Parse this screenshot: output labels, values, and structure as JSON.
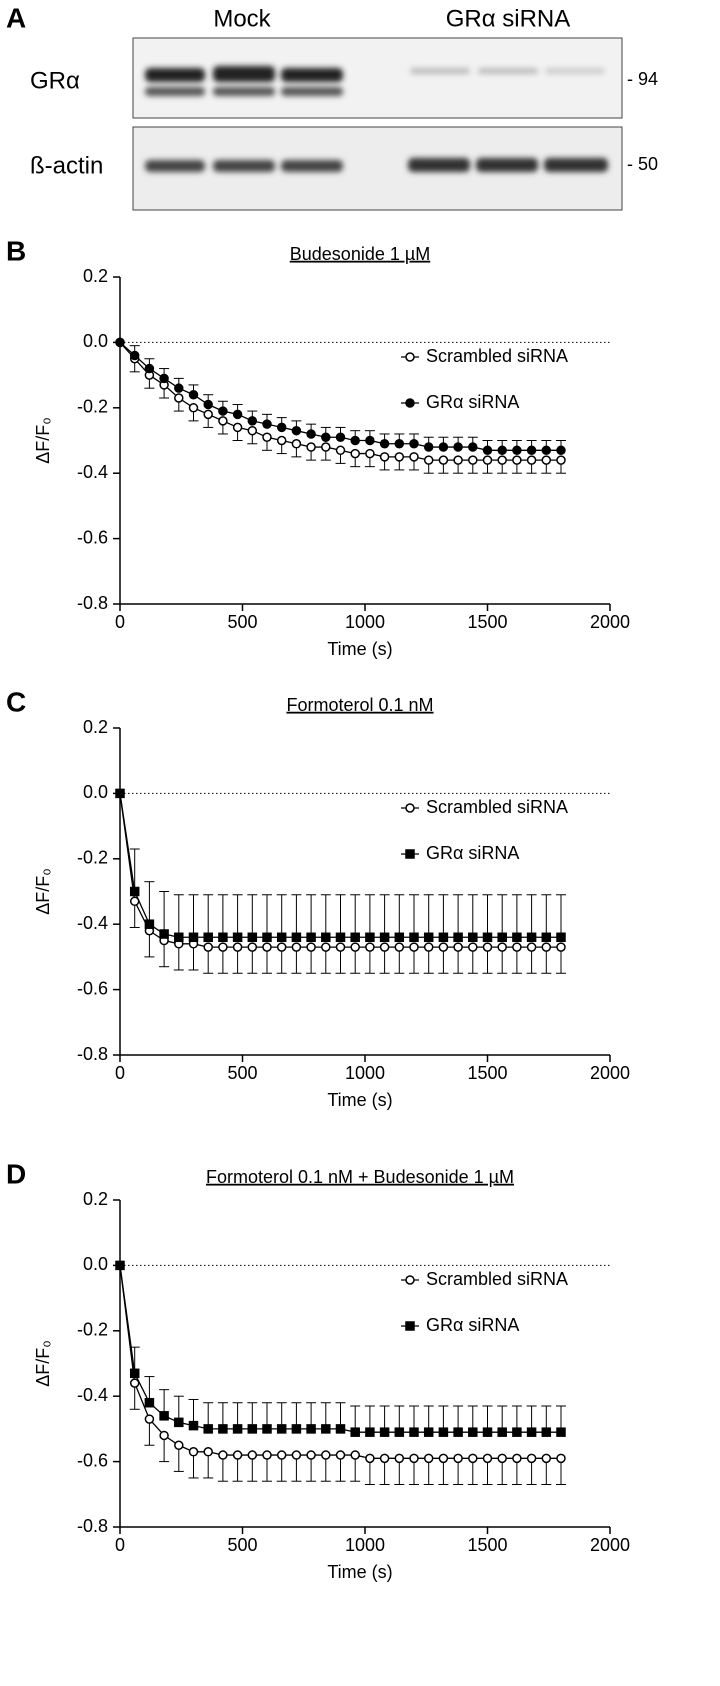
{
  "blot": {
    "panel": "A",
    "groups": [
      "Mock",
      "GRα siRNA"
    ],
    "rows": [
      {
        "label": "GRα",
        "size": "- 94"
      },
      {
        "label": "ß-actin",
        "size": "- 50"
      }
    ]
  },
  "chart_data": [
    {
      "type": "line",
      "panel": "B",
      "title": "Budesonide 1 µM",
      "xlabel": "Time (s)",
      "ylabel": "ΔF/F₀",
      "xlim": [
        0,
        2000
      ],
      "xticks": [
        0,
        500,
        1000,
        1500,
        2000
      ],
      "ylim": [
        -0.8,
        0.2
      ],
      "yticks": [
        -0.8,
        -0.6,
        -0.4,
        -0.2,
        {
          "value": 0,
          "label": "0.0"
        },
        0.2
      ],
      "hline": 0,
      "legend": "upper right",
      "x": [
        0,
        60,
        120,
        180,
        240,
        300,
        360,
        420,
        480,
        540,
        600,
        660,
        720,
        780,
        840,
        900,
        960,
        1020,
        1080,
        1140,
        1200,
        1260,
        1320,
        1380,
        1440,
        1500,
        1560,
        1620,
        1680,
        1740,
        1800
      ],
      "series": [
        {
          "name": "Scrambled siRNA",
          "marker": "circle-open",
          "color": "#000000",
          "values": [
            0,
            -0.05,
            -0.1,
            -0.13,
            -0.17,
            -0.2,
            -0.22,
            -0.24,
            -0.26,
            -0.27,
            -0.29,
            -0.3,
            -0.31,
            -0.32,
            -0.32,
            -0.33,
            -0.34,
            -0.34,
            -0.35,
            -0.35,
            -0.35,
            -0.36,
            -0.36,
            -0.36,
            -0.36,
            -0.36,
            -0.36,
            -0.36,
            -0.36,
            -0.36,
            -0.36
          ],
          "errors": [
            0,
            0.04,
            0.04,
            0.04,
            0.04,
            0.04,
            0.04,
            0.04,
            0.04,
            0.04,
            0.04,
            0.04,
            0.04,
            0.04,
            0.04,
            0.04,
            0.04,
            0.04,
            0.04,
            0.04,
            0.04,
            0.04,
            0.04,
            0.04,
            0.04,
            0.04,
            0.04,
            0.04,
            0.04,
            0.04,
            0.04
          ]
        },
        {
          "name": "GRα siRNA",
          "marker": "circle",
          "color": "#000000",
          "values": [
            0,
            -0.04,
            -0.08,
            -0.11,
            -0.14,
            -0.16,
            -0.19,
            -0.21,
            -0.22,
            -0.24,
            -0.25,
            -0.26,
            -0.27,
            -0.28,
            -0.29,
            -0.29,
            -0.3,
            -0.3,
            -0.31,
            -0.31,
            -0.31,
            -0.32,
            -0.32,
            -0.32,
            -0.32,
            -0.33,
            -0.33,
            -0.33,
            -0.33,
            -0.33,
            -0.33
          ],
          "errors": [
            0,
            0.03,
            0.03,
            0.03,
            0.03,
            0.03,
            0.03,
            0.03,
            0.03,
            0.03,
            0.03,
            0.03,
            0.03,
            0.03,
            0.03,
            0.03,
            0.03,
            0.03,
            0.03,
            0.03,
            0.03,
            0.03,
            0.03,
            0.03,
            0.03,
            0.03,
            0.03,
            0.03,
            0.03,
            0.03,
            0.03
          ]
        }
      ]
    },
    {
      "type": "line",
      "panel": "C",
      "title": "Formoterol 0.1 nM",
      "xlabel": "Time (s)",
      "ylabel": "ΔF/F₀",
      "xlim": [
        0,
        2000
      ],
      "xticks": [
        0,
        500,
        1000,
        1500,
        2000
      ],
      "ylim": [
        -0.8,
        0.2
      ],
      "yticks": [
        -0.8,
        -0.6,
        -0.4,
        -0.2,
        {
          "value": 0,
          "label": "0.0"
        },
        0.2
      ],
      "hline": 0,
      "legend": "upper right",
      "x": [
        0,
        60,
        120,
        180,
        240,
        300,
        360,
        420,
        480,
        540,
        600,
        660,
        720,
        780,
        840,
        900,
        960,
        1020,
        1080,
        1140,
        1200,
        1260,
        1320,
        1380,
        1440,
        1500,
        1560,
        1620,
        1680,
        1740,
        1800
      ],
      "series": [
        {
          "name": "Scrambled siRNA",
          "marker": "circle-open",
          "color": "#000000",
          "values": [
            0,
            -0.33,
            -0.42,
            -0.45,
            -0.46,
            -0.46,
            -0.47,
            -0.47,
            -0.47,
            -0.47,
            -0.47,
            -0.47,
            -0.47,
            -0.47,
            -0.47,
            -0.47,
            -0.47,
            -0.47,
            -0.47,
            -0.47,
            -0.47,
            -0.47,
            -0.47,
            -0.47,
            -0.47,
            -0.47,
            -0.47,
            -0.47,
            -0.47,
            -0.47,
            -0.47
          ],
          "errors": [
            0,
            0.08,
            0.08,
            0.08,
            0.08,
            0.08,
            0.08,
            0.08,
            0.08,
            0.08,
            0.08,
            0.08,
            0.08,
            0.08,
            0.08,
            0.08,
            0.08,
            0.08,
            0.08,
            0.08,
            0.08,
            0.08,
            0.08,
            0.08,
            0.08,
            0.08,
            0.08,
            0.08,
            0.08,
            0.08,
            0.08
          ]
        },
        {
          "name": "GRα siRNA",
          "marker": "square",
          "color": "#000000",
          "values": [
            0,
            -0.3,
            -0.4,
            -0.43,
            -0.44,
            -0.44,
            -0.44,
            -0.44,
            -0.44,
            -0.44,
            -0.44,
            -0.44,
            -0.44,
            -0.44,
            -0.44,
            -0.44,
            -0.44,
            -0.44,
            -0.44,
            -0.44,
            -0.44,
            -0.44,
            -0.44,
            -0.44,
            -0.44,
            -0.44,
            -0.44,
            -0.44,
            -0.44,
            -0.44,
            -0.44
          ],
          "errors": [
            0,
            0.13,
            0.13,
            0.13,
            0.13,
            0.13,
            0.13,
            0.13,
            0.13,
            0.13,
            0.13,
            0.13,
            0.13,
            0.13,
            0.13,
            0.13,
            0.13,
            0.13,
            0.13,
            0.13,
            0.13,
            0.13,
            0.13,
            0.13,
            0.13,
            0.13,
            0.13,
            0.13,
            0.13,
            0.13,
            0.13
          ]
        }
      ]
    },
    {
      "type": "line",
      "panel": "D",
      "title": "Formoterol 0.1 nM + Budesonide 1 µM",
      "xlabel": "Time (s)",
      "ylabel": "ΔF/F₀",
      "xlim": [
        0,
        2000
      ],
      "xticks": [
        0,
        500,
        1000,
        1500,
        2000
      ],
      "ylim": [
        -0.8,
        0.2
      ],
      "yticks": [
        -0.8,
        -0.6,
        -0.4,
        -0.2,
        {
          "value": 0,
          "label": "0.0"
        },
        0.2
      ],
      "hline": 0,
      "legend": "upper right",
      "x": [
        0,
        60,
        120,
        180,
        240,
        300,
        360,
        420,
        480,
        540,
        600,
        660,
        720,
        780,
        840,
        900,
        960,
        1020,
        1080,
        1140,
        1200,
        1260,
        1320,
        1380,
        1440,
        1500,
        1560,
        1620,
        1680,
        1740,
        1800
      ],
      "series": [
        {
          "name": "Scrambled siRNA",
          "marker": "circle-open",
          "color": "#000000",
          "values": [
            0,
            -0.36,
            -0.47,
            -0.52,
            -0.55,
            -0.57,
            -0.57,
            -0.58,
            -0.58,
            -0.58,
            -0.58,
            -0.58,
            -0.58,
            -0.58,
            -0.58,
            -0.58,
            -0.58,
            -0.59,
            -0.59,
            -0.59,
            -0.59,
            -0.59,
            -0.59,
            -0.59,
            -0.59,
            -0.59,
            -0.59,
            -0.59,
            -0.59,
            -0.59,
            -0.59
          ],
          "errors": [
            0,
            0.08,
            0.08,
            0.08,
            0.08,
            0.08,
            0.08,
            0.08,
            0.08,
            0.08,
            0.08,
            0.08,
            0.08,
            0.08,
            0.08,
            0.08,
            0.08,
            0.08,
            0.08,
            0.08,
            0.08,
            0.08,
            0.08,
            0.08,
            0.08,
            0.08,
            0.08,
            0.08,
            0.08,
            0.08,
            0.08
          ]
        },
        {
          "name": "GRα siRNA",
          "marker": "square",
          "color": "#000000",
          "values": [
            0,
            -0.33,
            -0.42,
            -0.46,
            -0.48,
            -0.49,
            -0.5,
            -0.5,
            -0.5,
            -0.5,
            -0.5,
            -0.5,
            -0.5,
            -0.5,
            -0.5,
            -0.5,
            -0.51,
            -0.51,
            -0.51,
            -0.51,
            -0.51,
            -0.51,
            -0.51,
            -0.51,
            -0.51,
            -0.51,
            -0.51,
            -0.51,
            -0.51,
            -0.51,
            -0.51
          ],
          "errors": [
            0,
            0.08,
            0.08,
            0.08,
            0.08,
            0.08,
            0.08,
            0.08,
            0.08,
            0.08,
            0.08,
            0.08,
            0.08,
            0.08,
            0.08,
            0.08,
            0.08,
            0.08,
            0.08,
            0.08,
            0.08,
            0.08,
            0.08,
            0.08,
            0.08,
            0.08,
            0.08,
            0.08,
            0.08,
            0.08,
            0.08
          ]
        }
      ]
    }
  ]
}
